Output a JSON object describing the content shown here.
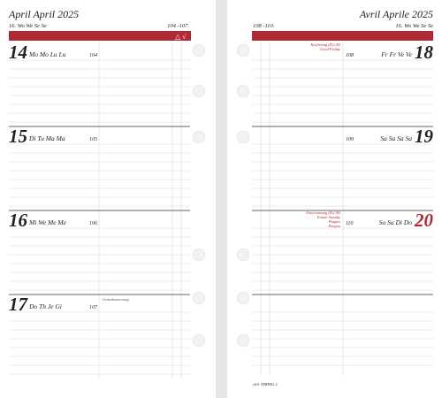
{
  "left": {
    "title": "April  April 2025",
    "week": "16. Wo We Se Se",
    "range": "104 -107.",
    "symbols": "△ √",
    "days": [
      {
        "day": "14",
        "names": "Mo Mo Lu Lu",
        "doy": "104"
      },
      {
        "day": "15",
        "names": "Di Tu Ma Ma",
        "doy": "105"
      },
      {
        "day": "16",
        "names": "Mi We Me Me",
        "doy": "106"
      },
      {
        "day": "17",
        "names": "Do Th Je Gi",
        "doy": "107",
        "notes": [
          "Gründonnerstag"
        ]
      }
    ]
  },
  "right": {
    "title": "Avril  Aprile 2025",
    "week": "16. Wo We Se Se",
    "range": "108 -110.",
    "footer": "ch® TIMING 2",
    "days": [
      {
        "day": "18",
        "names": "Fr Fr Ve Ve",
        "doy": "108",
        "notes": [
          "Karfreitag (D,CH)",
          "Good Friday"
        ]
      },
      {
        "day": "19",
        "names": "Sa Sa Sa Sa",
        "doy": "109"
      },
      {
        "day": "20",
        "names": "So Su Di Do",
        "doy": "110",
        "notes": [
          "Ostersonntag (D,CH)",
          "Easter Sunday",
          "Pâques",
          "Pasqua"
        ],
        "sunday": true
      }
    ]
  }
}
